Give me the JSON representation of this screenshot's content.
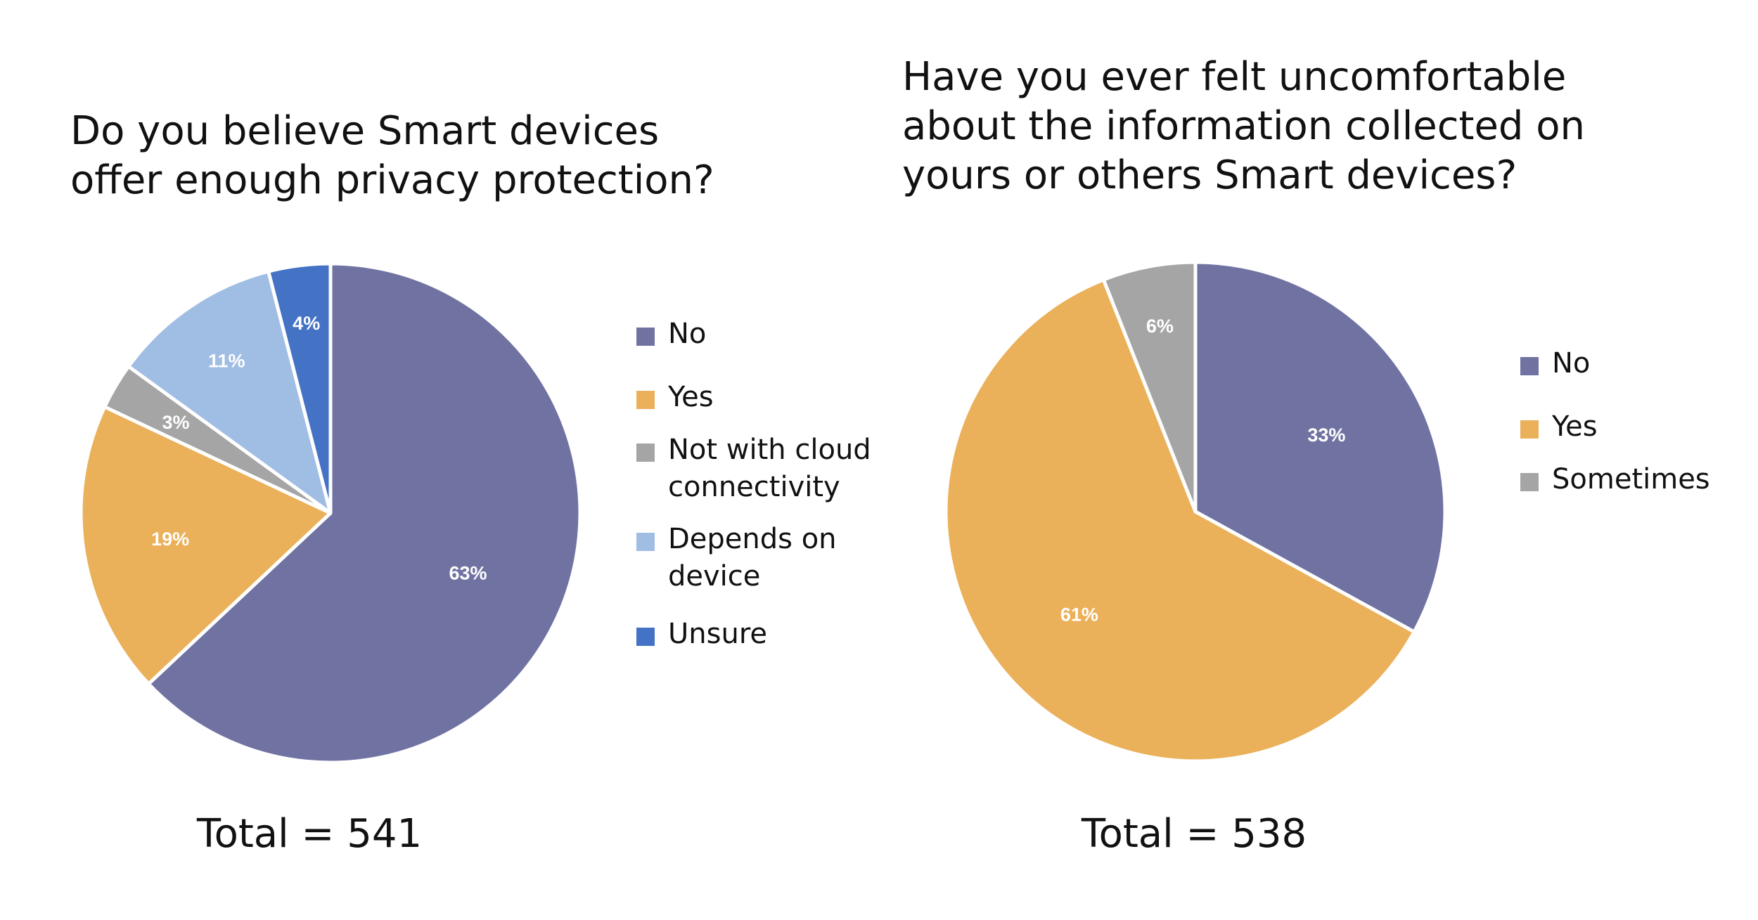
{
  "chart_data": [
    {
      "type": "pie",
      "title_lines": [
        "Do you believe Smart devices",
        "offer enough privacy protection?"
      ],
      "slices": [
        {
          "label": "No",
          "value": 63,
          "display": "63%",
          "color": "#7073a2"
        },
        {
          "label": "Yes",
          "value": 19,
          "display": "19%",
          "color": "#ebb05a"
        },
        {
          "label": "Not with cloud connectivity",
          "value": 3,
          "display": "3%",
          "color": "#a5a5a5"
        },
        {
          "label": "Depends on device",
          "value": 11,
          "display": "11%",
          "color": "#a0bde3"
        },
        {
          "label": "Unsure",
          "value": 4,
          "display": "4%",
          "color": "#4472c4"
        }
      ],
      "legend": [
        {
          "lines": [
            "No"
          ],
          "color": "#7073a2"
        },
        {
          "lines": [
            "Yes"
          ],
          "color": "#ebb05a"
        },
        {
          "lines": [
            "Not with cloud",
            "connectivity"
          ],
          "color": "#a5a5a5"
        },
        {
          "lines": [
            "Depends on",
            "device"
          ],
          "color": "#a0bde3"
        },
        {
          "lines": [
            "Unsure"
          ],
          "color": "#4472c4"
        }
      ],
      "total_label": "Total = 541",
      "total": 541
    },
    {
      "type": "pie",
      "title_lines": [
        "Have you ever felt uncomfortable",
        "about the information collected on",
        "yours or others Smart devices?"
      ],
      "slices": [
        {
          "label": "No",
          "value": 33,
          "display": "33%",
          "color": "#7073a2"
        },
        {
          "label": "Yes",
          "value": 61,
          "display": "61%",
          "color": "#ebb05a"
        },
        {
          "label": "Sometimes",
          "value": 6,
          "display": "6%",
          "color": "#a5a5a5"
        }
      ],
      "legend": [
        {
          "lines": [
            "No"
          ],
          "color": "#7073a2"
        },
        {
          "lines": [
            "Yes"
          ],
          "color": "#ebb05a"
        },
        {
          "lines": [
            "Sometimes"
          ],
          "color": "#a5a5a5"
        }
      ],
      "total_label": "Total = 538",
      "total": 538
    }
  ]
}
